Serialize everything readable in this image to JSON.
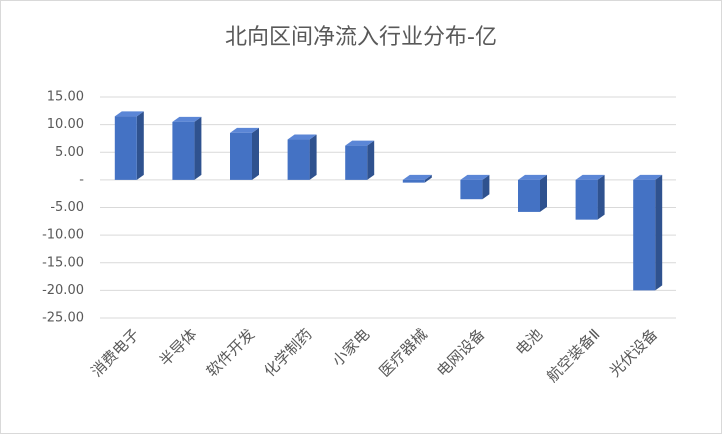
{
  "chart_data": {
    "type": "bar3d",
    "title": "北向区间净流入行业分布-亿",
    "categories": [
      "消费电子",
      "半导体",
      "软件开发",
      "化学制药",
      "小家电",
      "医疗器械",
      "电网设备",
      "电池",
      "航空装备Ⅱ",
      "光伏设备"
    ],
    "values": [
      11.5,
      10.5,
      8.5,
      7.3,
      6.2,
      -0.5,
      -3.5,
      -5.8,
      -7.2,
      -20
    ],
    "color": "#4472c4",
    "ylim": [
      -25,
      15
    ],
    "yticks": [
      {
        "value": 15,
        "label": "15.00"
      },
      {
        "value": 10,
        "label": "10.00"
      },
      {
        "value": 5,
        "label": "5.00"
      },
      {
        "value": 0,
        "label": "-"
      },
      {
        "value": -5,
        "label": "-5.00"
      },
      {
        "value": -10,
        "label": "-10.00"
      },
      {
        "value": -15,
        "label": "-15.00"
      },
      {
        "value": -20,
        "label": "-20.00"
      },
      {
        "value": -25,
        "label": "-25.00"
      }
    ],
    "grid": true
  }
}
